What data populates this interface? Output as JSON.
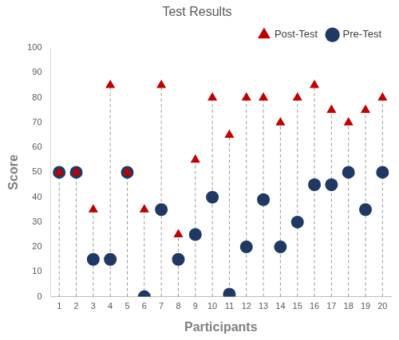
{
  "chart_data": {
    "type": "scatter",
    "title": "Test Results",
    "x_label": "Participants",
    "y_label": "Score",
    "categories": [
      "1",
      "2",
      "3",
      "4",
      "5",
      "6",
      "7",
      "8",
      "9",
      "10",
      "11",
      "12",
      "13",
      "14",
      "15",
      "16",
      "17",
      "18",
      "19",
      "20"
    ],
    "series": [
      {
        "name": "Pre-Test",
        "color": "#1f3864",
        "marker": "circle",
        "values": [
          50,
          50,
          15,
          15,
          50,
          0,
          35,
          15,
          25,
          40,
          1,
          20,
          39,
          20,
          30,
          45,
          45,
          50,
          35,
          50
        ]
      },
      {
        "name": "Post-Test",
        "color": "#c00000",
        "marker": "triangle",
        "values": [
          50,
          50,
          35,
          85,
          50,
          35,
          85,
          25,
          55,
          80,
          65,
          80,
          80,
          70,
          80,
          85,
          75,
          70,
          75,
          80
        ]
      }
    ],
    "ylim": [
      0,
      100
    ],
    "yticks": [
      0,
      10,
      20,
      30,
      40,
      50,
      60,
      70,
      80,
      90,
      100
    ],
    "grid": false,
    "legend": "top"
  }
}
